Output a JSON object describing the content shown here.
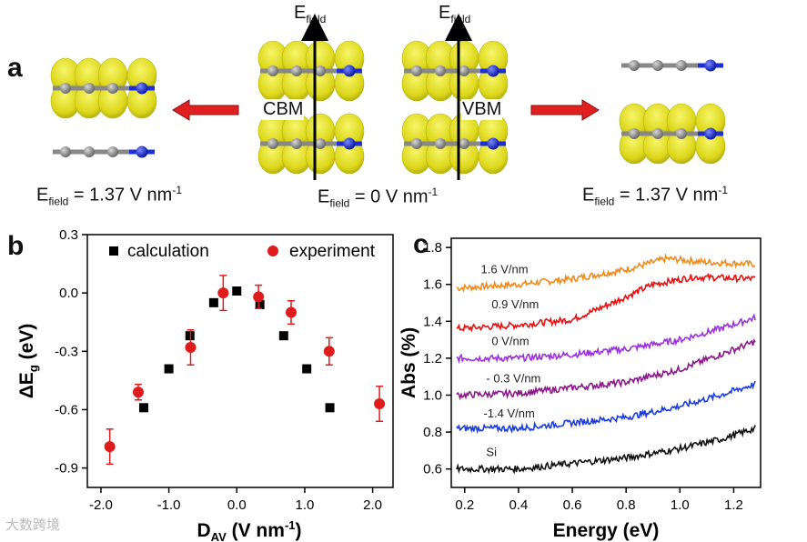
{
  "panel_a": {
    "letter": "a",
    "efield_label_main": "E",
    "efield_label_sub": "field",
    "cbm_label": "CBM",
    "vbm_label": "VBM",
    "captions": [
      {
        "main": "E",
        "sub": "field",
        "text": " = 1.37 V nm",
        "sup": "-1"
      },
      {
        "main": "E",
        "sub": "field",
        "text": " = 0 V nm",
        "sup": "-1"
      },
      {
        "main": "E",
        "sub": "field",
        "text": " = 1.37 V nm",
        "sup": "-1"
      }
    ],
    "colors": {
      "isosurface": "#e6e21c",
      "carbon": "#8a8a8a",
      "nitrogen": "#1a2fd6",
      "arrow": "#e02020"
    }
  },
  "watermark": "大数跨境",
  "chart_data": [
    {
      "type": "scatter",
      "panel": "b",
      "xlabel_main": "D",
      "xlabel_sub": "AV",
      "xlabel_rest": " (V nm",
      "xlabel_sup": "-1",
      "xlabel_end": ")",
      "ylabel_main": "ΔE",
      "ylabel_sub": "g",
      "ylabel_rest": " (eV)",
      "xlim": [
        -2.2,
        2.3
      ],
      "ylim": [
        -1.0,
        0.3
      ],
      "xticks": [
        "-2.0",
        "-1.0",
        "0.0",
        "1.0",
        "2.0"
      ],
      "xtick_values": [
        -2.0,
        -1.0,
        0.0,
        1.0,
        2.0
      ],
      "yticks": [
        "0.3",
        "0.0",
        "-0.3",
        "-0.6",
        "-0.9"
      ],
      "ytick_values": [
        0.3,
        0.0,
        -0.3,
        -0.6,
        -0.9
      ],
      "legend_position": "top",
      "series": [
        {
          "name": "calculation",
          "marker": "square",
          "color": "#000000",
          "x": [
            -1.37,
            -1.0,
            -0.69,
            -0.34,
            0.0,
            0.34,
            0.69,
            1.03,
            1.37
          ],
          "y": [
            -0.59,
            -0.39,
            -0.22,
            -0.05,
            0.01,
            -0.06,
            -0.22,
            -0.39,
            -0.59
          ]
        },
        {
          "name": "experiment",
          "marker": "circle",
          "color": "#e01b1b",
          "x": [
            -1.87,
            -1.45,
            -0.68,
            -0.2,
            0.32,
            0.8,
            1.36,
            2.1
          ],
          "y": [
            -0.79,
            -0.51,
            -0.28,
            0.0,
            -0.02,
            -0.1,
            -0.3,
            -0.57
          ],
          "err": [
            0.09,
            0.04,
            0.09,
            0.09,
            0.06,
            0.06,
            0.07,
            0.09
          ]
        }
      ]
    },
    {
      "type": "line",
      "panel": "c",
      "xlabel": "Energy (eV)",
      "ylabel": "Abs (%)",
      "xlim": [
        0.15,
        1.3
      ],
      "ylim": [
        0.5,
        1.85
      ],
      "xticks": [
        "0.2",
        "0.4",
        "0.6",
        "0.8",
        "1.0",
        "1.2"
      ],
      "xtick_values": [
        0.2,
        0.4,
        0.6,
        0.8,
        1.0,
        1.2
      ],
      "yticks": [
        "1.8",
        "1.6",
        "1.4",
        "1.2",
        "1.0",
        "0.8",
        "0.6"
      ],
      "ytick_values": [
        1.8,
        1.6,
        1.4,
        1.2,
        1.0,
        0.8,
        0.6
      ],
      "series": [
        {
          "name": "1.6 V/nm",
          "color": "#f08a1c",
          "label_pos": [
            0.26,
            1.66
          ],
          "points": [
            [
              0.17,
              1.58
            ],
            [
              0.4,
              1.6
            ],
            [
              0.6,
              1.63
            ],
            [
              0.8,
              1.68
            ],
            [
              0.95,
              1.74
            ],
            [
              1.1,
              1.72
            ],
            [
              1.28,
              1.71
            ]
          ]
        },
        {
          "name": "0.9 V/nm",
          "color": "#e81010",
          "label_pos": [
            0.3,
            1.47
          ],
          "points": [
            [
              0.17,
              1.36
            ],
            [
              0.4,
              1.38
            ],
            [
              0.6,
              1.41
            ],
            [
              0.75,
              1.5
            ],
            [
              0.9,
              1.6
            ],
            [
              1.05,
              1.64
            ],
            [
              1.28,
              1.63
            ]
          ]
        },
        {
          "name": "0 V/nm",
          "color": "#9b30e0",
          "label_pos": [
            0.3,
            1.27
          ],
          "points": [
            [
              0.17,
              1.2
            ],
            [
              0.4,
              1.2
            ],
            [
              0.6,
              1.22
            ],
            [
              0.8,
              1.25
            ],
            [
              1.0,
              1.3
            ],
            [
              1.15,
              1.36
            ],
            [
              1.28,
              1.42
            ]
          ]
        },
        {
          "name": "- 0.3 V/nm",
          "color": "#8a1a8a",
          "label_pos": [
            0.28,
            1.07
          ],
          "points": [
            [
              0.17,
              1.0
            ],
            [
              0.4,
              1.01
            ],
            [
              0.6,
              1.04
            ],
            [
              0.8,
              1.07
            ],
            [
              1.0,
              1.14
            ],
            [
              1.15,
              1.22
            ],
            [
              1.28,
              1.29
            ]
          ]
        },
        {
          "name": "-1.4 V/nm",
          "color": "#1a3ce0",
          "label_pos": [
            0.27,
            0.88
          ],
          "points": [
            [
              0.17,
              0.82
            ],
            [
              0.4,
              0.82
            ],
            [
              0.6,
              0.85
            ],
            [
              0.8,
              0.88
            ],
            [
              1.0,
              0.94
            ],
            [
              1.15,
              1.0
            ],
            [
              1.28,
              1.06
            ]
          ]
        },
        {
          "name": "Si",
          "color": "#111111",
          "label_pos": [
            0.28,
            0.67
          ],
          "points": [
            [
              0.17,
              0.6
            ],
            [
              0.4,
              0.6
            ],
            [
              0.6,
              0.63
            ],
            [
              0.8,
              0.66
            ],
            [
              1.0,
              0.71
            ],
            [
              1.15,
              0.76
            ],
            [
              1.28,
              0.82
            ]
          ]
        }
      ]
    }
  ]
}
